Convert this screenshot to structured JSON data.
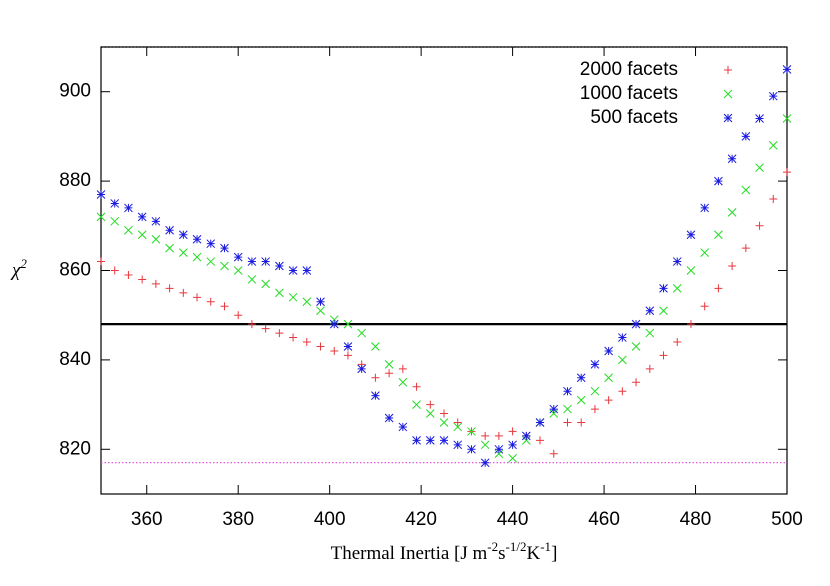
{
  "chart_data": {
    "type": "scatter",
    "ylabel": [
      {
        "text": "χ"
      },
      {
        "text": "2",
        "sup": true
      }
    ],
    "xlabel": [
      {
        "text": "Thermal Inertia [J m"
      },
      {
        "text": "-2",
        "sup": true
      },
      {
        "text": "s"
      },
      {
        "text": "-1/2",
        "sup": true
      },
      {
        "text": "K"
      },
      {
        "text": "-1",
        "sup": true
      },
      {
        "text": "]"
      }
    ],
    "x": [
      350,
      353,
      356,
      359,
      362,
      365,
      368,
      371,
      374,
      377,
      380,
      383,
      386,
      389,
      392,
      395,
      398,
      401,
      404,
      407,
      410,
      413,
      416,
      419,
      422,
      425,
      428,
      431,
      434,
      437,
      440,
      443,
      446,
      449,
      452,
      455,
      458,
      461,
      464,
      467,
      470,
      473,
      476,
      479,
      482,
      485,
      488,
      491,
      494,
      497,
      500
    ],
    "series": [
      {
        "name": "2000 facets",
        "color": "#e8383d",
        "marker": "plus",
        "values": [
          862,
          860,
          859,
          858,
          857,
          856,
          855,
          854,
          853,
          852,
          850,
          848,
          847,
          846,
          845,
          844,
          843,
          842,
          841,
          839,
          836,
          837,
          838,
          834,
          830,
          828,
          826,
          824,
          823,
          823,
          824,
          823,
          822,
          819,
          826,
          826,
          829,
          831,
          833,
          835,
          838,
          841,
          844,
          848,
          852,
          856,
          861,
          865,
          870,
          876,
          882
        ]
      },
      {
        "name": "1000 facets",
        "color": "#22dd22",
        "marker": "cross",
        "values": [
          872,
          871,
          869,
          868,
          867,
          865,
          864,
          863,
          862,
          861,
          860,
          858,
          857,
          855,
          854,
          853,
          851,
          849,
          848,
          846,
          843,
          839,
          835,
          830,
          828,
          826,
          825,
          824,
          821,
          819,
          818,
          822,
          826,
          828,
          829,
          831,
          833,
          836,
          840,
          843,
          846,
          851,
          856,
          860,
          864,
          868,
          873,
          878,
          883,
          888,
          894
        ]
      },
      {
        "name": "500 facets",
        "color": "#1a1ae0",
        "marker": "star",
        "values": [
          877,
          875,
          874,
          872,
          871,
          869,
          868,
          867,
          866,
          865,
          863,
          862,
          862,
          861,
          860,
          860,
          853,
          848,
          843,
          838,
          832,
          827,
          825,
          822,
          822,
          822,
          821,
          820,
          817,
          820,
          821,
          823,
          826,
          829,
          833,
          836,
          839,
          842,
          845,
          848,
          851,
          856,
          862,
          868,
          874,
          880,
          885,
          890,
          894,
          899,
          905
        ]
      }
    ],
    "hlines": [
      {
        "value": 848,
        "color": "#000000",
        "style": "solid"
      },
      {
        "value": 817,
        "color": "#dd44dd",
        "style": "dotted"
      },
      {
        "value": 910,
        "color": "#000000",
        "style": "dotted"
      }
    ],
    "xlim": [
      350,
      500
    ],
    "ylim": [
      810,
      910
    ],
    "xticks": [
      360,
      380,
      400,
      420,
      440,
      460,
      480,
      500
    ],
    "yticks": [
      820,
      840,
      860,
      880,
      900
    ],
    "legend": "top-right"
  }
}
